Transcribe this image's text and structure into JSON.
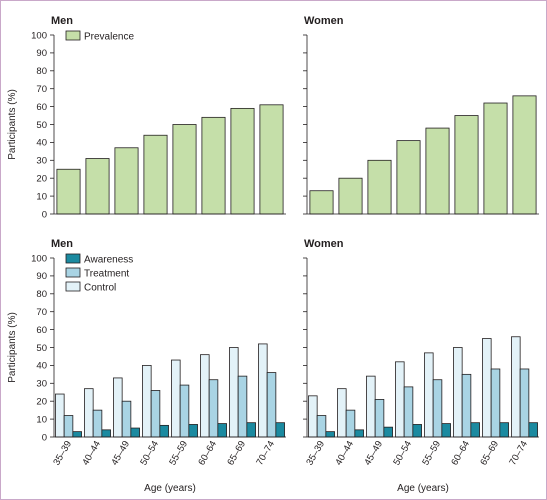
{
  "colors": {
    "prevalence": "#c5dfa9",
    "awareness": "#1b8aa0",
    "treatment": "#a9d4e4",
    "control": "#e3f2f8",
    "stroke": "#231f20"
  },
  "chart_data": [
    {
      "type": "bar",
      "title": "Men",
      "xlabel": "",
      "ylabel": "Participants (%)",
      "ylim": [
        0,
        100
      ],
      "yticks": [
        0,
        10,
        20,
        30,
        40,
        50,
        60,
        70,
        80,
        90,
        100
      ],
      "grid": false,
      "legend": "top-left",
      "categories": [
        "35–39",
        "40–44",
        "45–49",
        "50–54",
        "55–59",
        "60–64",
        "65–69",
        "70–74"
      ],
      "series": [
        {
          "name": "Prevalence",
          "color": "#c5dfa9",
          "values": [
            25,
            31,
            37,
            44,
            50,
            54,
            59,
            61
          ]
        }
      ]
    },
    {
      "type": "bar",
      "title": "Women",
      "xlabel": "",
      "ylabel": "",
      "ylim": [
        0,
        100
      ],
      "grid": false,
      "categories": [
        "35–39",
        "40–44",
        "45–49",
        "50–54",
        "55–59",
        "60–64",
        "65–69",
        "70–74"
      ],
      "series": [
        {
          "name": "Prevalence",
          "color": "#c5dfa9",
          "values": [
            13,
            20,
            30,
            41,
            48,
            55,
            62,
            66
          ]
        }
      ]
    },
    {
      "type": "bar",
      "title": "Men",
      "xlabel": "Age (years)",
      "ylabel": "Participants (%)",
      "ylim": [
        0,
        100
      ],
      "yticks": [
        0,
        10,
        20,
        30,
        40,
        50,
        60,
        70,
        80,
        90,
        100
      ],
      "grid": false,
      "legend": "top-left",
      "categories": [
        "35–39",
        "40–44",
        "45–49",
        "50–54",
        "55–59",
        "60–64",
        "65–69",
        "70–74"
      ],
      "series": [
        {
          "name": "Control",
          "color": "#e3f2f8",
          "values": [
            24,
            27,
            33,
            40,
            43,
            46,
            50,
            52
          ]
        },
        {
          "name": "Treatment",
          "color": "#a9d4e4",
          "values": [
            12,
            15,
            20,
            26,
            29,
            32,
            34,
            36
          ]
        },
        {
          "name": "Awareness",
          "color": "#1b8aa0",
          "values": [
            3,
            4,
            5,
            6.5,
            7,
            7.5,
            8,
            8
          ]
        }
      ]
    },
    {
      "type": "bar",
      "title": "Women",
      "xlabel": "Age (years)",
      "ylabel": "",
      "ylim": [
        0,
        100
      ],
      "grid": false,
      "categories": [
        "35–39",
        "40–44",
        "45–49",
        "50–54",
        "55–59",
        "60–64",
        "65–69",
        "70–74"
      ],
      "series": [
        {
          "name": "Control",
          "color": "#e3f2f8",
          "values": [
            23,
            27,
            34,
            42,
            47,
            50,
            55,
            56
          ]
        },
        {
          "name": "Treatment",
          "color": "#a9d4e4",
          "values": [
            12,
            15,
            21,
            28,
            32,
            35,
            38,
            38
          ]
        },
        {
          "name": "Awareness",
          "color": "#1b8aa0",
          "values": [
            3,
            4,
            5.5,
            7,
            7.5,
            8,
            8,
            8
          ]
        }
      ]
    }
  ],
  "legends": {
    "top": [
      "Prevalence"
    ],
    "bottom": [
      "Awareness",
      "Treatment",
      "Control"
    ]
  }
}
